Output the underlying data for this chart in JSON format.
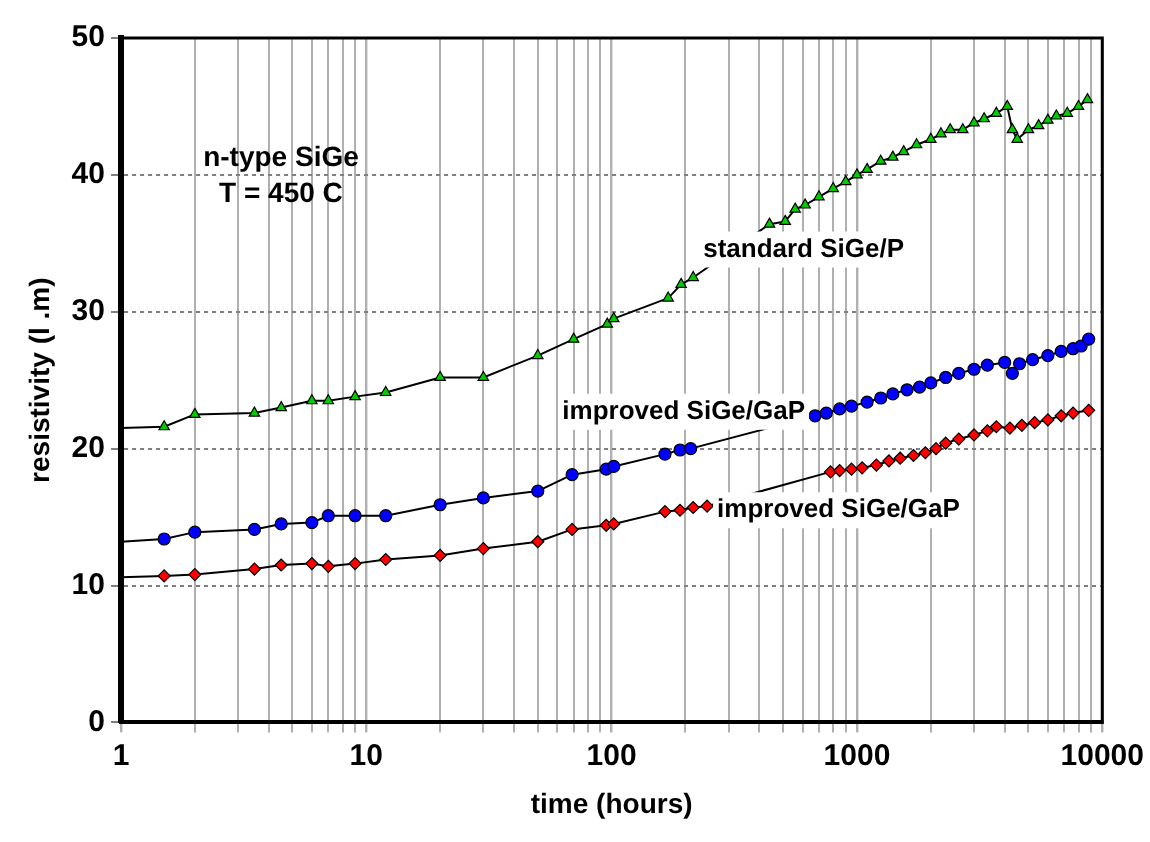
{
  "chart_data": {
    "type": "line",
    "xlabel": "time (hours)",
    "ylabel": "resistivity (l .m)",
    "annotations": [
      "n-type SiGe",
      "T = 450 C"
    ],
    "log": "x",
    "grid": true,
    "legend": false,
    "xlim": [
      1,
      10000
    ],
    "ylim": [
      0,
      50
    ],
    "xticks": [
      1,
      {
        "value": 2,
        "label": null
      },
      {
        "value": 3,
        "label": null
      },
      {
        "value": 4,
        "label": null
      },
      {
        "value": 5,
        "label": null
      },
      {
        "value": 6,
        "label": null
      },
      {
        "value": 7,
        "label": null
      },
      {
        "value": 8,
        "label": null
      },
      {
        "value": 9,
        "label": null
      },
      10,
      {
        "value": 20,
        "label": null
      },
      {
        "value": 30,
        "label": null
      },
      {
        "value": 40,
        "label": null
      },
      {
        "value": 50,
        "label": null
      },
      {
        "value": 60,
        "label": null
      },
      {
        "value": 70,
        "label": null
      },
      {
        "value": 80,
        "label": null
      },
      {
        "value": 90,
        "label": null
      },
      100,
      {
        "value": 200,
        "label": null
      },
      {
        "value": 300,
        "label": null
      },
      {
        "value": 400,
        "label": null
      },
      {
        "value": 500,
        "label": null
      },
      {
        "value": 600,
        "label": null
      },
      {
        "value": 700,
        "label": null
      },
      {
        "value": 800,
        "label": null
      },
      {
        "value": 900,
        "label": null
      },
      1000,
      {
        "value": 2000,
        "label": null
      },
      {
        "value": 3000,
        "label": null
      },
      {
        "value": 4000,
        "label": null
      },
      {
        "value": 5000,
        "label": null
      },
      {
        "value": 6000,
        "label": null
      },
      {
        "value": 7000,
        "label": null
      },
      {
        "value": 8000,
        "label": null
      },
      {
        "value": 9000,
        "label": null
      },
      10000
    ],
    "yticks": [
      0,
      10,
      20,
      30,
      40,
      50
    ],
    "series": [
      {
        "name": "standard SiGe/P",
        "color": "#00cc00",
        "marker": "triangle",
        "x": [
          1,
          1.5,
          2,
          3.5,
          4.5,
          6,
          7,
          9,
          12,
          20,
          30,
          50,
          70,
          96,
          102,
          170,
          192,
          215,
          440,
          510,
          560,
          615,
          700,
          800,
          900,
          1000,
          1100,
          1250,
          1400,
          1550,
          1750,
          2000,
          2200,
          2400,
          2700,
          3000,
          3300,
          3700,
          4100,
          4300,
          4500,
          5000,
          5500,
          6000,
          6500,
          7200,
          8000,
          8700
        ],
        "values": [
          21.5,
          21.6,
          22.5,
          22.6,
          23,
          23.5,
          23.5,
          23.8,
          24.1,
          25.2,
          25.2,
          26.8,
          28,
          29.1,
          29.5,
          31,
          32,
          32.5,
          36.4,
          36.6,
          37.5,
          37.8,
          38.4,
          39,
          39.5,
          40,
          40.4,
          41,
          41.3,
          41.7,
          42.2,
          42.6,
          43,
          43.3,
          43.3,
          43.8,
          44.1,
          44.5,
          45,
          43.3,
          42.6,
          43.3,
          43.6,
          44,
          44.3,
          44.5,
          45,
          45.5
        ]
      },
      {
        "name": "improved SiGe/GaP",
        "color": "#0000ff",
        "marker": "circle",
        "x": [
          1,
          1.5,
          2,
          3.5,
          4.5,
          6,
          7,
          9,
          12,
          20,
          30,
          50,
          69,
          95,
          102,
          165,
          190,
          210,
          675,
          750,
          850,
          950,
          1100,
          1250,
          1400,
          1600,
          1800,
          2000,
          2300,
          2600,
          3000,
          3400,
          4000,
          4300,
          4600,
          5200,
          6000,
          6800,
          7600,
          8200,
          8800
        ],
        "values": [
          13.2,
          13.4,
          13.9,
          14.1,
          14.5,
          14.6,
          15.1,
          15.1,
          15.1,
          15.9,
          16.4,
          16.9,
          18.1,
          18.5,
          18.7,
          19.6,
          19.9,
          20,
          22.4,
          22.6,
          22.9,
          23.1,
          23.4,
          23.7,
          24,
          24.3,
          24.5,
          24.8,
          25.2,
          25.5,
          25.8,
          26.1,
          26.3,
          25.5,
          26.2,
          26.5,
          26.8,
          27.1,
          27.3,
          27.5,
          28
        ]
      },
      {
        "name": "improved SiGe/GaP",
        "color": "#ff0000",
        "marker": "diamond",
        "x": [
          1,
          1.5,
          2,
          3.5,
          4.5,
          6,
          7,
          9,
          12,
          20,
          30,
          50,
          69,
          95,
          102,
          165,
          190,
          215,
          245,
          780,
          850,
          950,
          1050,
          1200,
          1350,
          1500,
          1700,
          1900,
          2100,
          2300,
          2600,
          3000,
          3400,
          3700,
          4200,
          4700,
          5300,
          6000,
          6800,
          7600,
          8800
        ],
        "values": [
          10.6,
          10.7,
          10.8,
          11.2,
          11.5,
          11.6,
          11.4,
          11.6,
          11.9,
          12.2,
          12.7,
          13.2,
          14.1,
          14.4,
          14.5,
          15.4,
          15.5,
          15.7,
          15.8,
          18.3,
          18.4,
          18.5,
          18.6,
          18.8,
          19.1,
          19.3,
          19.5,
          19.7,
          20,
          20.4,
          20.7,
          21,
          21.3,
          21.6,
          21.5,
          21.7,
          21.9,
          22.1,
          22.4,
          22.6,
          22.8
        ]
      }
    ]
  }
}
